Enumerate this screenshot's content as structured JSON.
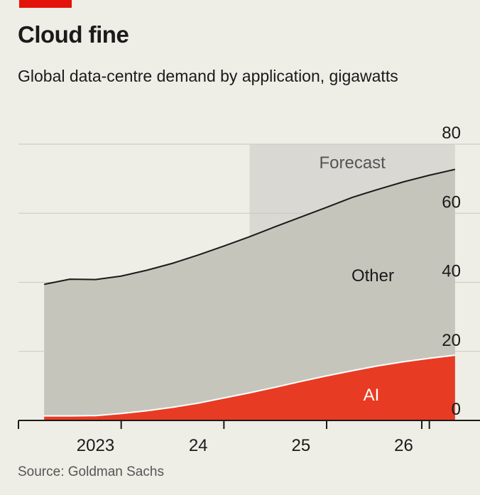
{
  "title": "Cloud fine",
  "subtitle": "Global data-centre demand by application, gigawatts",
  "source": "Source: Goldman Sachs",
  "colors": {
    "accent": "#e3120b",
    "ai": "#e83b24",
    "other": "#c6c5bb",
    "forecast": "#d9d8d2",
    "background": "#eeede6",
    "grid": "#c9c8c1"
  },
  "chart_data": {
    "type": "area",
    "stacked": true,
    "x": [
      2022.75,
      2023.0,
      2023.25,
      2023.5,
      2023.75,
      2024.0,
      2024.25,
      2024.5,
      2024.75,
      2025.0,
      2025.25,
      2025.5,
      2025.75,
      2026.0,
      2026.25,
      2026.5,
      2026.75
    ],
    "series": [
      {
        "name": "AI",
        "values": [
          1.3,
          1.3,
          1.4,
          2.0,
          2.8,
          3.8,
          5.0,
          6.5,
          8.0,
          9.6,
          11.3,
          12.9,
          14.4,
          15.8,
          17.0,
          18.0,
          18.9
        ]
      },
      {
        "name": "Other",
        "values": [
          38.1,
          39.6,
          39.4,
          39.8,
          40.7,
          41.7,
          42.9,
          44.0,
          45.2,
          46.5,
          47.6,
          48.8,
          50.2,
          51.1,
          52.1,
          53.0,
          53.8
        ]
      }
    ],
    "forecast": {
      "label": "Forecast",
      "from": 2024.75,
      "to": 2026.75
    },
    "yticks": [
      0,
      20,
      40,
      60,
      80
    ],
    "ylim": [
      0,
      80
    ],
    "xticks": [
      {
        "label": "2023",
        "at": 2023.25
      },
      {
        "label": "24",
        "at": 2024.25
      },
      {
        "label": "25",
        "at": 2025.25
      },
      {
        "label": "26",
        "at": 2026.25
      }
    ],
    "xlim": [
      2022.5,
      2027.0
    ],
    "grid": true
  }
}
